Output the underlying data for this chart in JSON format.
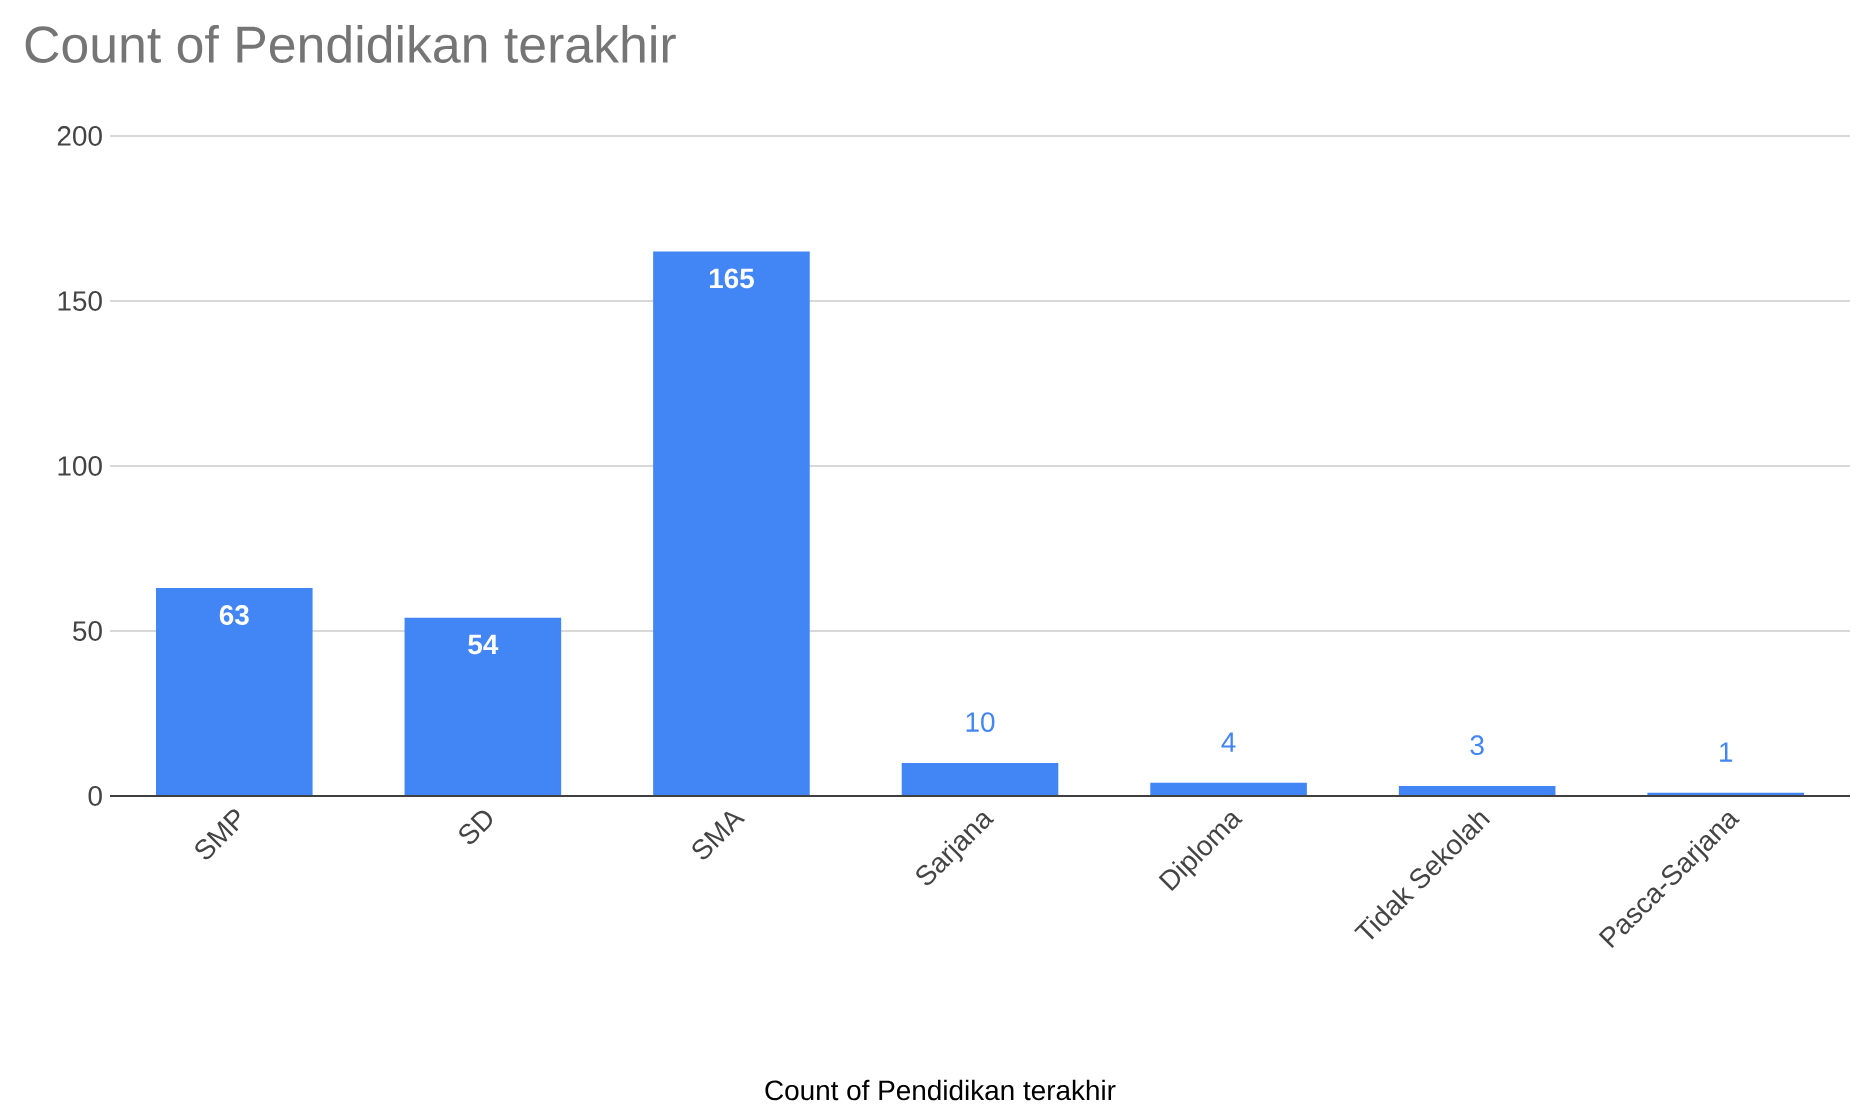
{
  "chart_data": {
    "type": "bar",
    "title": "Count of Pendidikan terakhir",
    "xlabel": "Count of Pendidikan terakhir",
    "categories": [
      "SMP",
      "SD",
      "SMA",
      "Sarjana",
      "Diploma",
      "Tidak Sekolah",
      "Pasca-Sarjana"
    ],
    "values": [
      63,
      54,
      165,
      10,
      4,
      3,
      1
    ],
    "color": "#4285f4",
    "ylim": [
      0,
      200
    ],
    "yticks": [
      0,
      50,
      100,
      150,
      200
    ],
    "grid": "y",
    "data_labels": true
  }
}
